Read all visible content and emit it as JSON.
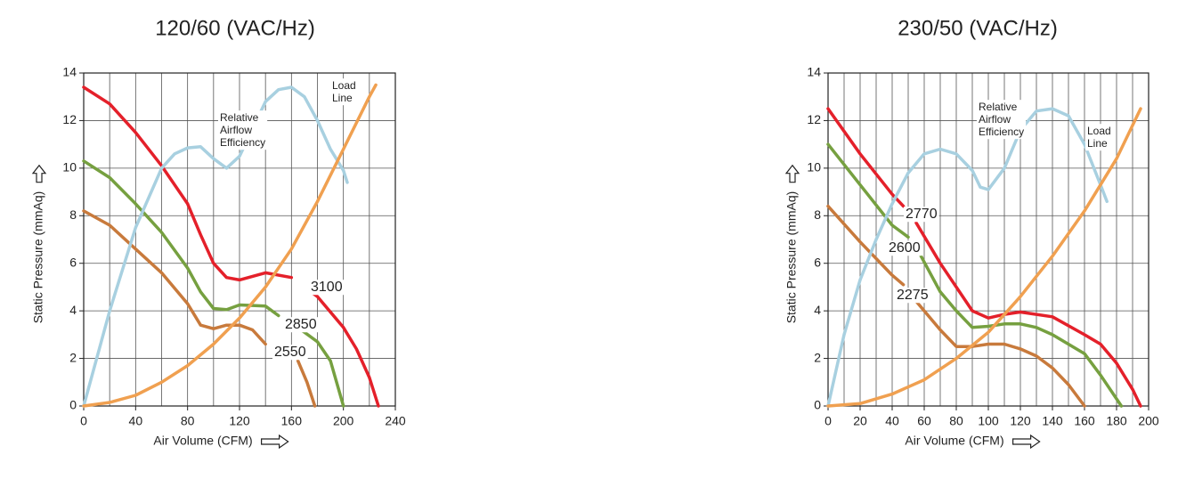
{
  "chart_data": [
    {
      "type": "line",
      "title": "120/60 (VAC/Hz)",
      "xlabel": "Air Volume (CFM)",
      "ylabel": "Static Pressure (mmAq)",
      "xlim": [
        0,
        240
      ],
      "ylim": [
        0,
        14
      ],
      "xticks": [
        0,
        40,
        80,
        120,
        160,
        200,
        240
      ],
      "yticks": [
        0,
        2,
        4,
        6,
        8,
        10,
        12,
        14
      ],
      "xgrid": [
        0,
        20,
        40,
        60,
        80,
        100,
        120,
        140,
        160,
        180,
        200,
        220,
        240
      ],
      "grid": true,
      "series": [
        {
          "name": "3100",
          "color": "#e4202a",
          "x": [
            0,
            20,
            40,
            60,
            80,
            90,
            100,
            110,
            120,
            140,
            160,
            166,
            175,
            180,
            200,
            210,
            220,
            227
          ],
          "values": [
            13.4,
            12.7,
            11.5,
            10.1,
            8.5,
            7.2,
            6.0,
            5.4,
            5.3,
            5.6,
            5.4,
            null,
            4.8,
            4.6,
            3.3,
            2.4,
            1.2,
            0
          ]
        },
        {
          "name": "2850",
          "color": "#76a040",
          "x": [
            0,
            20,
            40,
            60,
            80,
            90,
            100,
            110,
            120,
            140,
            150,
            158,
            165,
            180,
            190,
            200
          ],
          "values": [
            10.3,
            9.6,
            8.5,
            7.3,
            5.8,
            4.8,
            4.1,
            4.05,
            4.25,
            4.2,
            3.8,
            null,
            3.3,
            2.7,
            1.9,
            0
          ]
        },
        {
          "name": "2550",
          "color": "#c87a3c",
          "x": [
            0,
            20,
            40,
            60,
            80,
            90,
            100,
            110,
            120,
            130,
            140,
            152,
            165,
            172,
            178
          ],
          "values": [
            8.2,
            7.6,
            6.6,
            5.6,
            4.3,
            3.4,
            3.25,
            3.4,
            3.4,
            3.2,
            2.6,
            null,
            1.9,
            1.0,
            0
          ]
        },
        {
          "name": "Relative Airflow Efficiency",
          "color": "#a8d0e0",
          "x": [
            0,
            20,
            40,
            60,
            70,
            80,
            90,
            100,
            110,
            120,
            140,
            150,
            160,
            170,
            180,
            190,
            200,
            203
          ],
          "values": [
            0,
            4.0,
            7.5,
            10.0,
            10.6,
            10.85,
            10.9,
            10.4,
            10.0,
            10.5,
            12.8,
            13.3,
            13.4,
            13.0,
            12.0,
            10.8,
            9.9,
            9.4
          ]
        },
        {
          "name": "Load Line",
          "color": "#f0a050",
          "x": [
            0,
            20,
            40,
            60,
            80,
            100,
            120,
            140,
            160,
            180,
            200,
            220,
            225
          ],
          "values": [
            0,
            0.15,
            0.45,
            1.0,
            1.7,
            2.6,
            3.7,
            5.0,
            6.6,
            8.6,
            10.8,
            13.0,
            13.5
          ]
        }
      ]
    },
    {
      "type": "line",
      "title": "230/50 (VAC/Hz)",
      "xlabel": "Air Volume (CFM)",
      "ylabel": "Static Pressure (mmAq)",
      "xlim": [
        0,
        200
      ],
      "ylim": [
        0,
        14
      ],
      "xticks": [
        0,
        20,
        40,
        60,
        80,
        100,
        120,
        140,
        160,
        180,
        200
      ],
      "yticks": [
        0,
        2,
        4,
        6,
        8,
        10,
        12,
        14
      ],
      "xgrid": [
        0,
        10,
        20,
        30,
        40,
        50,
        60,
        70,
        80,
        90,
        100,
        110,
        120,
        130,
        140,
        150,
        160,
        170,
        180,
        190,
        200
      ],
      "grid": true,
      "series": [
        {
          "name": "2770",
          "color": "#e4202a",
          "x": [
            0,
            20,
            40,
            47,
            51,
            55,
            70,
            80,
            90,
            100,
            110,
            120,
            140,
            160,
            170,
            180,
            190,
            195
          ],
          "values": [
            12.5,
            10.6,
            8.9,
            8.4,
            null,
            7.7,
            6.0,
            5.0,
            4.0,
            3.7,
            3.85,
            3.95,
            3.75,
            3.0,
            2.6,
            1.8,
            0.7,
            0
          ]
        },
        {
          "name": "2600",
          "color": "#76a040",
          "x": [
            0,
            20,
            40,
            50,
            54,
            58,
            70,
            80,
            90,
            100,
            110,
            120,
            130,
            140,
            160,
            170,
            180,
            183
          ],
          "values": [
            11.0,
            9.3,
            7.6,
            7.1,
            null,
            6.3,
            4.8,
            4.0,
            3.3,
            3.35,
            3.45,
            3.45,
            3.3,
            3.0,
            2.2,
            1.3,
            0.3,
            0
          ]
        },
        {
          "name": "2275",
          "color": "#c87a3c",
          "x": [
            0,
            20,
            40,
            47,
            51,
            55,
            70,
            80,
            90,
            100,
            110,
            120,
            130,
            140,
            150,
            160
          ],
          "values": [
            8.4,
            6.9,
            5.5,
            5.1,
            null,
            4.4,
            3.2,
            2.5,
            2.5,
            2.6,
            2.6,
            2.4,
            2.1,
            1.6,
            0.9,
            0
          ]
        },
        {
          "name": "Relative Airflow Efficiency",
          "color": "#a8d0e0",
          "x": [
            0,
            10,
            20,
            30,
            40,
            50,
            60,
            70,
            80,
            90,
            95,
            100,
            110,
            120,
            130,
            140,
            150,
            160,
            170,
            174
          ],
          "values": [
            0,
            3.0,
            5.3,
            7.0,
            8.5,
            9.8,
            10.6,
            10.8,
            10.6,
            9.9,
            9.2,
            9.1,
            10.0,
            11.6,
            12.4,
            12.5,
            12.2,
            11.0,
            9.3,
            8.6
          ]
        },
        {
          "name": "Load Line",
          "color": "#f0a050",
          "x": [
            0,
            20,
            40,
            60,
            80,
            100,
            120,
            140,
            160,
            180,
            195
          ],
          "values": [
            0,
            0.1,
            0.5,
            1.1,
            2.0,
            3.1,
            4.6,
            6.3,
            8.2,
            10.4,
            12.5
          ]
        }
      ]
    }
  ]
}
